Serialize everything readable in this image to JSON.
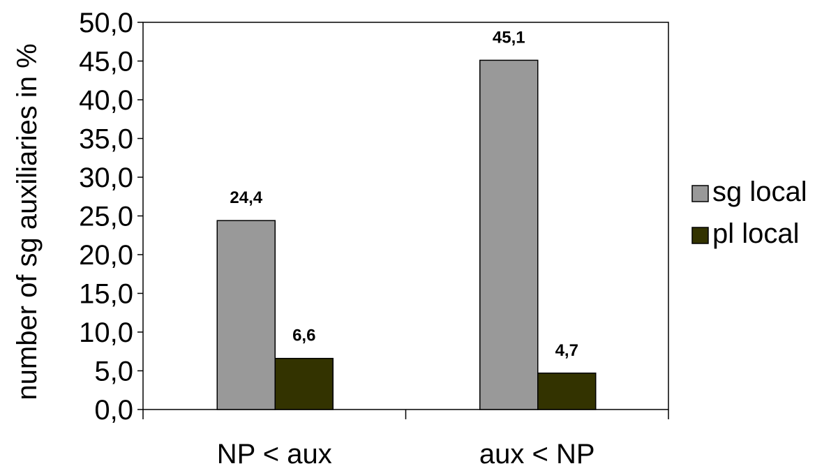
{
  "chart_data": {
    "type": "bar",
    "title": "",
    "xlabel": "",
    "ylabel": "number of sg auxiliaries in %",
    "categories": [
      "NP < aux",
      "aux < NP"
    ],
    "series": [
      {
        "name": "sg local",
        "values": [
          24.4,
          45.1
        ],
        "labels": [
          "24,4",
          "45,1"
        ],
        "color": "#999999"
      },
      {
        "name": "pl local",
        "values": [
          6.6,
          4.7
        ],
        "labels": [
          "6,6",
          "4,7"
        ],
        "color": "#333300"
      }
    ],
    "ylim": [
      0,
      50
    ],
    "yticks": [
      0,
      5,
      10,
      15,
      20,
      25,
      30,
      35,
      40,
      45,
      50
    ],
    "ytick_labels": [
      "0,0",
      "5,0",
      "10,0",
      "15,0",
      "20,0",
      "25,0",
      "30,0",
      "35,0",
      "40,0",
      "45,0",
      "50,0"
    ],
    "grid": false,
    "legend_position": "right",
    "bar_outline_color": "#000000"
  }
}
